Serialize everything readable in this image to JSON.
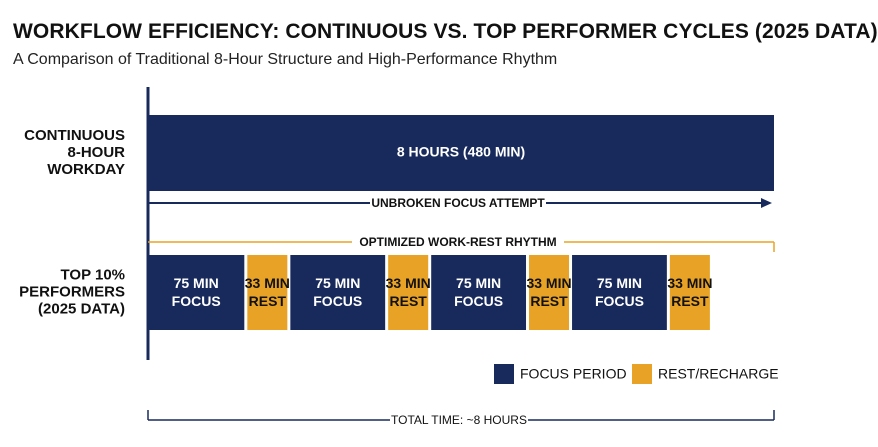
{
  "title": "WORKFLOW EFFICIENCY: CONTINUOUS VS. TOP PERFORMER CYCLES (2025 DATA)",
  "subtitle": "A Comparison of Traditional 8-Hour Structure and High-Performance Rhythm",
  "colors": {
    "focus": "#182a5c",
    "rest": "#e8a326",
    "axis": "#182a5c",
    "text": "#111111"
  },
  "chart_data": {
    "type": "bar",
    "orientation": "horizontal-stacked",
    "categories": [
      "CONTINUOUS 8-HOUR WORKDAY",
      "TOP 10% PERFORMERS (2025 DATA)"
    ],
    "category_label_lines": [
      [
        "CONTINUOUS",
        "8-HOUR",
        "WORKDAY"
      ],
      [
        "TOP 10%",
        "PERFORMERS",
        "(2025 DATA)"
      ]
    ],
    "continuous": {
      "segments": [
        {
          "type": "focus",
          "minutes": 480,
          "label": "8 HOURS (480 MIN)"
        }
      ],
      "annotation": "UNBROKEN FOCUS ATTEMPT"
    },
    "top_performers": {
      "bracket_label": "OPTIMIZED WORK-REST RHYTHM",
      "segments": [
        {
          "type": "focus",
          "minutes": 75,
          "label": [
            "75 MIN",
            "FOCUS"
          ]
        },
        {
          "type": "rest",
          "minutes": 33,
          "label": [
            "33 MIN",
            "REST"
          ]
        },
        {
          "type": "focus",
          "minutes": 75,
          "label": [
            "75 MIN",
            "FOCUS"
          ]
        },
        {
          "type": "rest",
          "minutes": 33,
          "label": [
            "33 MIN",
            "REST"
          ]
        },
        {
          "type": "focus",
          "minutes": 75,
          "label": [
            "75 MIN",
            "FOCUS"
          ]
        },
        {
          "type": "rest",
          "minutes": 33,
          "label": [
            "33 MIN",
            "REST"
          ]
        },
        {
          "type": "focus",
          "minutes": 75,
          "label": [
            "75 MIN",
            "FOCUS"
          ]
        },
        {
          "type": "rest",
          "minutes": 33,
          "label": [
            "33 MIN",
            "REST"
          ]
        }
      ]
    },
    "legend": [
      {
        "key": "focus",
        "label": "FOCUS PERIOD"
      },
      {
        "key": "rest",
        "label": "REST/RECHARGE"
      }
    ],
    "legend_position": "bottom-right",
    "total_label": "TOTAL TIME: ~8 HOURS",
    "xlim": [
      0,
      480
    ],
    "grid": false
  }
}
